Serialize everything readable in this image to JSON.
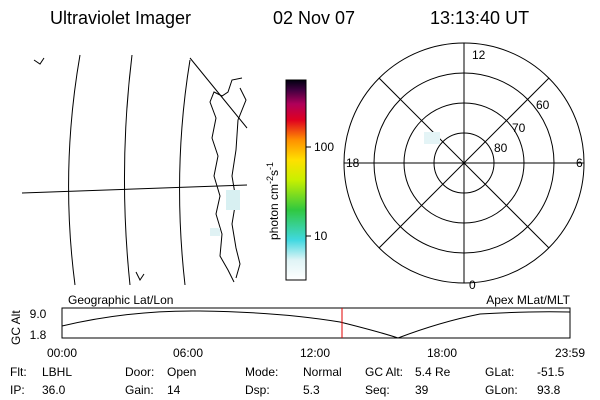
{
  "header": {
    "title": "Ultraviolet Imager",
    "date": "02 Nov 07",
    "time": "13:13:40 UT"
  },
  "colorbar": {
    "label": "photon cm",
    "exp1": "-2",
    "unit2": "s",
    "exp2": "-1",
    "ticks": [
      "100",
      "10"
    ]
  },
  "polar": {
    "hours": [
      "12",
      "18",
      "6",
      "0"
    ],
    "latitudes": [
      "60",
      "70",
      "80"
    ]
  },
  "panel_labels": {
    "left": "Geographic Lat/Lon",
    "right": "Apex MLat/MLT"
  },
  "timeline": {
    "ylabel": "GC Alt",
    "yticks": [
      "9.0",
      "1.8"
    ],
    "xticks": [
      "00:00",
      "06:00",
      "12:00",
      "18:00",
      "23:59"
    ]
  },
  "footer": {
    "rows": [
      [
        {
          "label": "Flt:",
          "value": "LBHL"
        },
        {
          "label": "Door:",
          "value": "Open"
        },
        {
          "label": "Mode:",
          "value": "Normal"
        },
        {
          "label": "GC Alt:",
          "value": "5.4 Re"
        },
        {
          "label": "GLat:",
          "value": "-51.5"
        }
      ],
      [
        {
          "label": "IP:",
          "value": "36.0"
        },
        {
          "label": "Gain:",
          "value": "14"
        },
        {
          "label": "Dsp:",
          "value": "5.3"
        },
        {
          "label": "Seq:",
          "value": "39"
        },
        {
          "label": "GLon:",
          "value": "93.8"
        }
      ]
    ]
  }
}
